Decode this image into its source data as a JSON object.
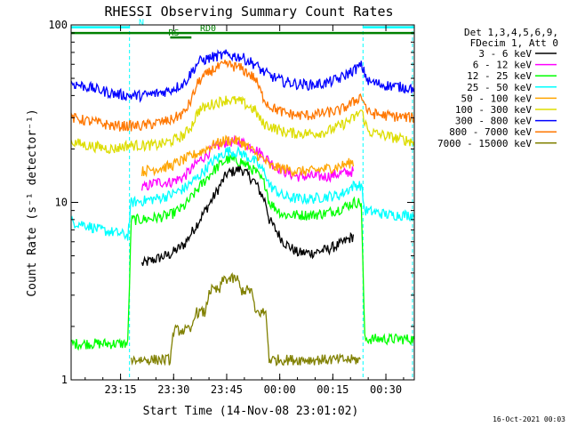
{
  "chart_data": {
    "type": "line",
    "title": "RHESSI Observing Summary Count Rates",
    "xlabel": "Start Time (14-Nov-08 23:01:02)",
    "ylabel": "Count Rate (s⁻¹ detector⁻¹)",
    "y_scale": "log",
    "ylim": [
      1,
      100
    ],
    "xlim_minutes": [
      0,
      97
    ],
    "x_ticks": [
      {
        "label": "23:15",
        "min": 13.97
      },
      {
        "label": "23:30",
        "min": 28.97
      },
      {
        "label": "23:45",
        "min": 43.97
      },
      {
        "label": "00:00",
        "min": 58.97
      },
      {
        "label": "00:15",
        "min": 73.97
      },
      {
        "label": "00:30",
        "min": 88.97
      }
    ],
    "y_ticks": [
      {
        "label": "1",
        "value": 1
      },
      {
        "label": "10",
        "value": 10
      },
      {
        "label": "100",
        "value": 100
      }
    ],
    "legend_header": [
      "Det 1,3,4,5,6,9,",
      "FDecim 1, Att 0"
    ],
    "legend_placement": "right",
    "series": [
      {
        "name": "3 - 6 keV",
        "color": "#000000",
        "x": [
          17,
          20,
          24,
          28,
          32,
          36,
          40,
          44,
          48,
          52,
          55,
          56,
          60,
          64,
          68,
          72,
          76,
          80,
          83
        ],
        "y": [
          null,
          4.5,
          4.8,
          5.1,
          5.8,
          7.8,
          10.5,
          14.5,
          15.5,
          13,
          10,
          8,
          6,
          5.2,
          5.2,
          5.4,
          5.8,
          6.5,
          null
        ]
      },
      {
        "name": "6 - 12 keV",
        "color": "#ff00ff",
        "x": [
          17,
          20,
          24,
          28,
          32,
          36,
          40,
          44,
          48,
          52,
          55,
          56,
          60,
          64,
          68,
          72,
          76,
          80,
          83
        ],
        "y": [
          null,
          12,
          13,
          13,
          14,
          17,
          20,
          22,
          22,
          20,
          18,
          17,
          15,
          14,
          14,
          14,
          14.5,
          15,
          null
        ]
      },
      {
        "name": "12 - 25 keV",
        "color": "#00ff00",
        "x": [
          0,
          4,
          8,
          12,
          16,
          17,
          20,
          24,
          28,
          32,
          36,
          40,
          44,
          48,
          52,
          55,
          56,
          60,
          64,
          68,
          72,
          76,
          80,
          82,
          83,
          86,
          90,
          94,
          97
        ],
        "y": [
          1.6,
          1.6,
          1.6,
          1.6,
          1.6,
          8,
          8,
          8.2,
          8.5,
          9.5,
          12,
          15,
          17.5,
          17,
          15,
          12.5,
          10,
          8.5,
          8.5,
          8.5,
          8.7,
          9.2,
          10,
          10,
          1.7,
          1.7,
          1.7,
          1.7,
          1.7
        ]
      },
      {
        "name": "25 - 50 keV",
        "color": "#00ffff",
        "x": [
          0,
          4,
          8,
          12,
          16,
          17,
          20,
          24,
          28,
          32,
          36,
          40,
          44,
          48,
          52,
          55,
          56,
          60,
          64,
          68,
          72,
          76,
          80,
          82,
          83,
          86,
          90,
          94,
          97
        ],
        "y": [
          7.8,
          7.5,
          7,
          6.8,
          6.5,
          10,
          10.2,
          10.5,
          11,
          12,
          14,
          17,
          19.5,
          19,
          17,
          14.5,
          12.5,
          10.8,
          10.5,
          10.5,
          10.8,
          11,
          12.5,
          12.5,
          9,
          8.8,
          8.5,
          8.5,
          8.5
        ]
      },
      {
        "name": "50 - 100 keV",
        "color": "#ffa500",
        "x": [
          17,
          20,
          24,
          28,
          32,
          36,
          40,
          44,
          48,
          52,
          55,
          56,
          60,
          64,
          68,
          72,
          76,
          80,
          83
        ],
        "y": [
          null,
          15,
          15.5,
          16,
          17.5,
          19,
          21,
          22.5,
          22,
          19,
          17,
          16,
          15.5,
          15,
          15,
          15.5,
          16,
          17,
          null
        ]
      },
      {
        "name": "100 - 300 keV",
        "color": "#dddd00",
        "x": [
          0,
          4,
          8,
          12,
          16,
          20,
          24,
          28,
          32,
          34,
          36,
          40,
          44,
          48,
          52,
          54,
          56,
          60,
          64,
          68,
          72,
          76,
          80,
          82,
          84,
          88,
          92,
          97
        ],
        "y": [
          22,
          21,
          20.5,
          20,
          21,
          21,
          21,
          22,
          24,
          27,
          33,
          36,
          38,
          37,
          33,
          28,
          27,
          25,
          24.5,
          24.5,
          25,
          27,
          30,
          33,
          25,
          24,
          23,
          22
        ]
      },
      {
        "name": "300 - 800 keV",
        "color": "#0000ff",
        "x": [
          0,
          4,
          8,
          12,
          16,
          20,
          24,
          28,
          32,
          34,
          36,
          40,
          44,
          48,
          52,
          54,
          56,
          60,
          64,
          68,
          72,
          76,
          80,
          82,
          84,
          88,
          92,
          97
        ],
        "y": [
          47,
          45,
          43,
          41,
          40,
          40,
          41,
          43,
          47,
          54,
          62,
          66,
          68,
          66,
          60,
          55,
          52,
          48,
          46.5,
          46,
          47,
          50,
          56,
          59,
          48,
          46,
          45,
          44
        ]
      },
      {
        "name": "800 - 7000 keV",
        "color": "#ff7700",
        "x": [
          0,
          4,
          8,
          12,
          16,
          20,
          24,
          28,
          32,
          34,
          36,
          40,
          44,
          48,
          52,
          54,
          56,
          60,
          64,
          68,
          72,
          76,
          80,
          82,
          84,
          88,
          92,
          97
        ],
        "y": [
          30,
          29,
          28,
          27,
          27,
          27,
          28,
          29,
          32,
          38,
          48,
          56,
          60,
          57,
          50,
          40,
          35,
          32,
          31,
          31,
          32,
          33,
          37,
          40,
          32,
          31,
          30.5,
          30
        ]
      },
      {
        "name": "7000 - 15000 keV",
        "color": "#808000",
        "x": [
          0,
          16,
          17,
          28,
          29,
          34,
          35,
          38,
          39,
          42,
          43,
          47,
          48,
          51,
          52,
          55,
          56,
          82,
          83,
          97
        ],
        "y": [
          null,
          null,
          1.3,
          1.3,
          1.9,
          1.9,
          2.4,
          2.4,
          3.2,
          3.2,
          3.7,
          3.7,
          3.2,
          3.2,
          2.4,
          2.4,
          1.3,
          1.3,
          null,
          null
        ]
      }
    ],
    "flags": [
      {
        "label": "N",
        "x_start": 0,
        "x_end": 16.5,
        "y": 97,
        "color": "#00ffff"
      },
      {
        "label": "",
        "x_start": 82.5,
        "x_end": 97,
        "y": 97,
        "color": "#00ffff"
      },
      {
        "label": "RD0",
        "x_start": 0,
        "x_end": 97,
        "y": 90,
        "color": "#008000"
      },
      {
        "label": "RS",
        "x_start": 28,
        "x_end": 34,
        "y": 85,
        "color": "#008000"
      }
    ],
    "vlines": [
      {
        "x": 16.5,
        "color": "#00ffff",
        "style": "dashed"
      },
      {
        "x": 82.5,
        "color": "#00ffff",
        "style": "dashed"
      },
      {
        "x": 96.5,
        "color": "#00ffff",
        "style": "dashed"
      }
    ]
  },
  "timestamp": "16-Oct-2021 00:03"
}
